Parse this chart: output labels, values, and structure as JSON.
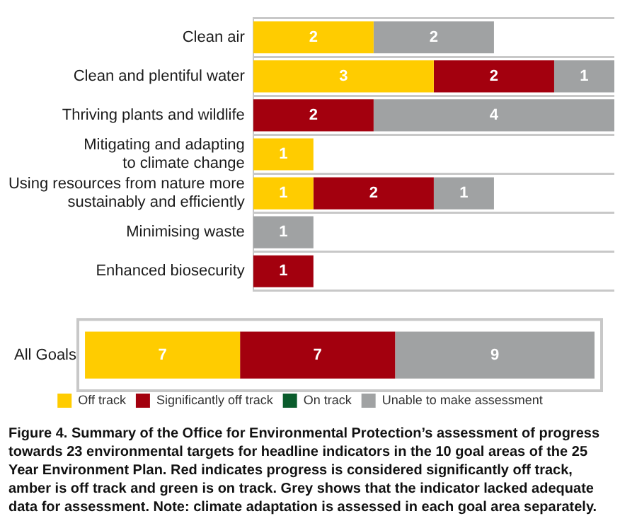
{
  "chart_data": [
    {
      "type": "bar",
      "orientation": "horizontal",
      "stacked": true,
      "data_labels": true,
      "grid": "y",
      "legend": false,
      "tick_labels": "y",
      "categories": [
        "Clean air",
        "Clean and plentiful water",
        "Thriving plants and wildlife",
        "Mitigating and adapting\nto climate change",
        "Using resources from nature more\nsustainably and efficiently",
        "Minimising waste",
        "Enhanced biosecurity"
      ],
      "series": [
        {
          "color": "#ffcc00",
          "values": [
            2,
            3,
            null,
            1,
            1,
            null,
            null
          ]
        },
        {
          "color": "#a3000e",
          "values": [
            null,
            2,
            2,
            null,
            2,
            null,
            1
          ]
        },
        {
          "color": "#0a5c2c",
          "values": [
            null,
            null,
            null,
            null,
            null,
            null,
            null
          ]
        },
        {
          "color": "#a0a2a3",
          "values": [
            2,
            1,
            4,
            null,
            1,
            1,
            null
          ]
        }
      ]
    },
    {
      "type": "bar",
      "orientation": "horizontal",
      "stacked": true,
      "data_labels": true,
      "legend": "bottom",
      "tick_labels": "y",
      "categories": [
        "All Goals"
      ],
      "series": [
        {
          "name": "Off track",
          "color": "#ffcc00",
          "values": [
            7
          ]
        },
        {
          "name": "Significantly off track",
          "color": "#a3000e",
          "values": [
            7
          ]
        },
        {
          "name": "On track",
          "color": "#0a5c2c",
          "values": [
            null
          ]
        },
        {
          "name": "Unable to make assessment",
          "color": "#a0a2a3",
          "values": [
            9
          ]
        }
      ],
      "annotations": [
        "Figure 4.  Summary of the Office for Environmental Protection’s assessment of progress towards 23 environmental targets for headline indicators in the 10 goal areas of the 25 Year Environment Plan. Red indicates progress is considered significantly off track, amber is off track and green is on track. Grey shows that the indicator lacked adequate data for assessment. Note: climate adaptation is assessed in each goal area separately."
      ]
    }
  ]
}
